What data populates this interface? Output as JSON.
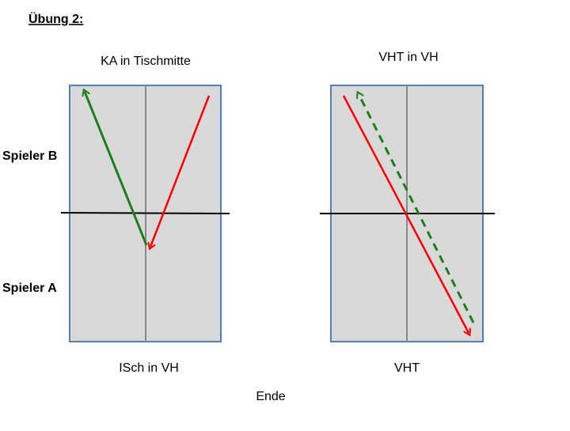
{
  "header": {
    "title": "Übung 2:"
  },
  "players": {
    "top": "Spieler B",
    "bottom": "Spieler A"
  },
  "tables": [
    {
      "top_label": "KA in Tischmitte",
      "bottom_label": "ISch in VH"
    },
    {
      "top_label": "VHT in VH",
      "bottom_label": "VHT"
    }
  ],
  "footer": "Ende"
}
